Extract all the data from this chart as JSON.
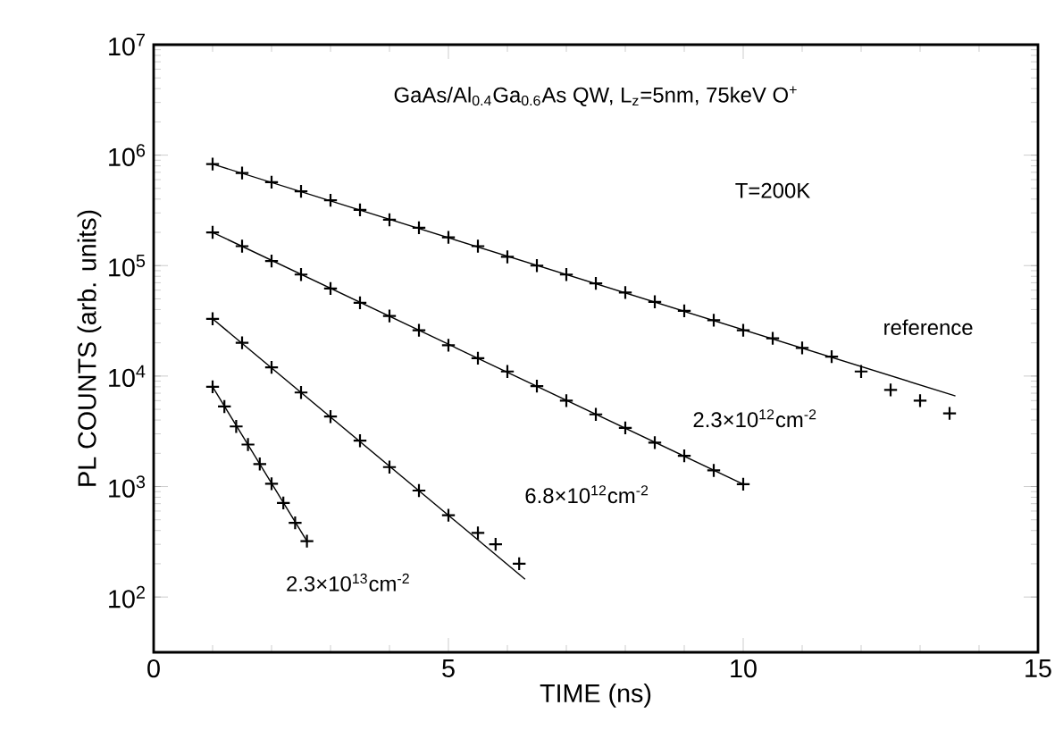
{
  "chart_data": {
    "type": "scatter",
    "xlabel": "TIME (ns)",
    "ylabel": "PL COUNTS (arb. units)",
    "log": "y",
    "marker": "cross",
    "xlim": [
      0,
      15
    ],
    "xticks": [
      0,
      5,
      10,
      15
    ],
    "ylim": [
      31.6,
      10000000
    ],
    "yticks": [
      {
        "value": 100,
        "label": "10$^{2}$"
      },
      {
        "value": 1000,
        "label": "10$^{3}$"
      },
      {
        "value": 10000,
        "label": "10$^{4}$"
      },
      {
        "value": 100000,
        "label": "10$^{5}$"
      },
      {
        "value": 1000000,
        "label": "10$^{6}$"
      },
      {
        "value": 10000000,
        "label": "10$^{7}$"
      }
    ],
    "series": [
      {
        "color": "#000000",
        "x": [
          1,
          1.5,
          2,
          2.5,
          3,
          3.5,
          4,
          4.5,
          5,
          5.5,
          6,
          6.5,
          7,
          7.5,
          8,
          8.5,
          9,
          9.5,
          10,
          10.5,
          11,
          11.5,
          12,
          12.5,
          13,
          13.5
        ],
        "values": [
          830000,
          690000,
          570000,
          470000,
          390000,
          320000,
          260000,
          220000,
          180000,
          150000,
          120000,
          100000,
          83000,
          69000,
          57000,
          47000,
          39000,
          32000,
          26000,
          22000,
          18000,
          15000,
          11000,
          7500,
          6000,
          4600
        ]
      },
      {
        "type": "line",
        "color": "#000000",
        "line_style": "solid",
        "marker": "none",
        "x": [
          1,
          13.6
        ],
        "values": [
          830000,
          6600
        ]
      },
      {
        "color": "#000000",
        "x": [
          1,
          1.5,
          2,
          2.5,
          3,
          3.5,
          4,
          4.5,
          5,
          5.5,
          6,
          6.5,
          7,
          7.5,
          8,
          8.5,
          9,
          9.5,
          10
        ],
        "values": [
          200000,
          150000,
          110000,
          83000,
          62000,
          46000,
          35000,
          26000,
          19000,
          14500,
          11000,
          8100,
          6000,
          4500,
          3400,
          2500,
          1900,
          1400,
          1050
        ]
      },
      {
        "type": "line",
        "color": "#000000",
        "line_style": "solid",
        "marker": "none",
        "x": [
          1,
          10
        ],
        "values": [
          200000,
          1050
        ]
      },
      {
        "color": "#000000",
        "x": [
          1,
          1.5,
          2,
          2.5,
          3,
          3.5,
          4,
          4.5,
          5,
          5.5,
          5.8,
          6.2
        ],
        "values": [
          33000,
          20000,
          12000,
          7100,
          4300,
          2600,
          1500,
          920,
          550,
          380,
          300,
          200
        ]
      },
      {
        "type": "line",
        "color": "#000000",
        "line_style": "solid",
        "marker": "none",
        "x": [
          1,
          6.3
        ],
        "values": [
          33000,
          145
        ]
      },
      {
        "color": "#000000",
        "x": [
          1,
          1.2,
          1.4,
          1.6,
          1.8,
          2.0,
          2.2,
          2.4,
          2.6
        ],
        "values": [
          8000,
          5300,
          3500,
          2400,
          1600,
          1060,
          710,
          470,
          320
        ]
      },
      {
        "type": "line",
        "color": "#000000",
        "line_style": "solid",
        "marker": "none",
        "x": [
          1,
          2.6
        ],
        "values": [
          8000,
          320
        ]
      }
    ],
    "annotations": [
      "GaAs/Al$_{0.4}$Ga$_{0.6}$As  QW,  L$_{z}$=5nm,  75keV  O$^{+}$",
      "T=200K",
      "reference",
      "2.3×10$^{12}$cm$^{-2}$",
      "6.8×10$^{12}$cm$^{-2}$",
      "2.3×10$^{13}$cm$^{-2}$"
    ]
  }
}
